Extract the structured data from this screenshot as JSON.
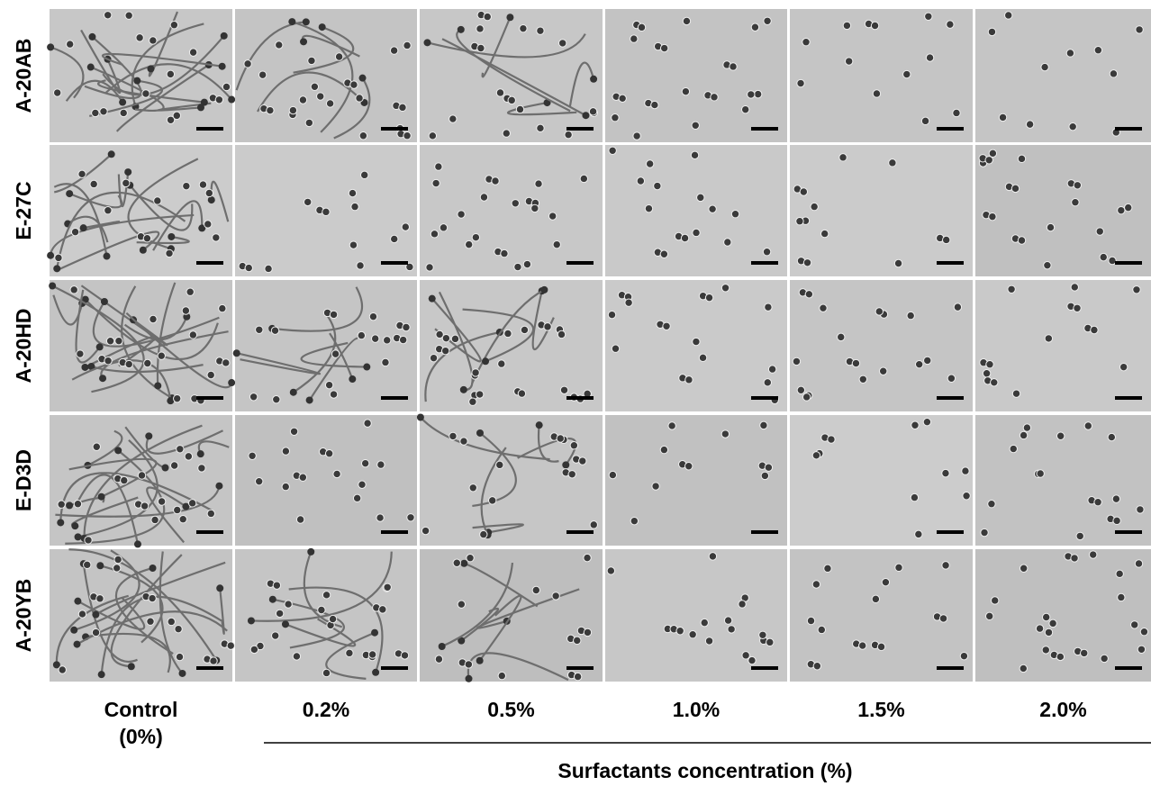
{
  "row_labels": [
    "A-20AB",
    "E-27C",
    "A-20HD",
    "E-D3D",
    "A-20YB"
  ],
  "column_labels": [
    "Control (0%)",
    "0.2%",
    "0.5%",
    "1.0%",
    "1.5%",
    "2.0%"
  ],
  "axis_title": "Surfactants concentration (%)"
}
